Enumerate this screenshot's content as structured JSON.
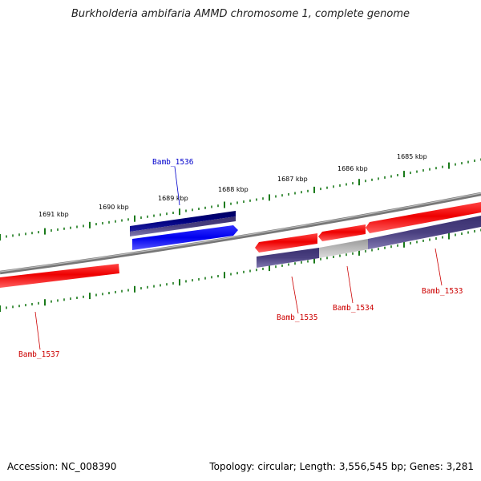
{
  "title": "Burkholderia ambifaria AMMD chromosome 1, complete genome",
  "footer": {
    "accession": "Accession: NC_008390",
    "summary": "Topology: circular; Length: 3,556,545 bp; Genes: 3,281"
  },
  "scale_labels": [
    "1685 kbp",
    "1686 kbp",
    "1687 kbp",
    "1688 kbp",
    "1689 kbp",
    "1690 kbp",
    "1691 kbp"
  ],
  "genes": [
    {
      "name": "Bamb_1536",
      "color": "#0000cc"
    },
    {
      "name": "Bamb_1535",
      "color": "#cc0000"
    },
    {
      "name": "Bamb_1534",
      "color": "#cc0000"
    },
    {
      "name": "Bamb_1533",
      "color": "#cc0000"
    },
    {
      "name": "Bamb_1537",
      "color": "#cc0000"
    }
  ],
  "colors": {
    "backbone": "#888888",
    "tick": "#1a7a1a",
    "forward_cds": "#ff0000",
    "reverse_cds": "#1a1aff",
    "rna_blue": "#000080",
    "rna_purple": "#4a4080",
    "rna_gray": "#b0b0b0"
  }
}
